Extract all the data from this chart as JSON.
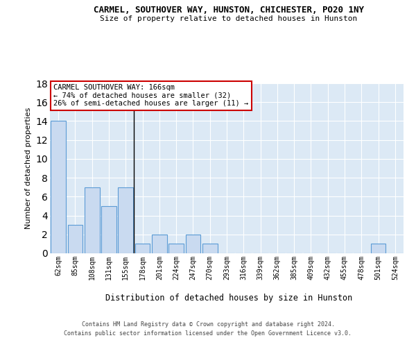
{
  "title": "CARMEL, SOUTHOVER WAY, HUNSTON, CHICHESTER, PO20 1NY",
  "subtitle": "Size of property relative to detached houses in Hunston",
  "xlabel": "Distribution of detached houses by size in Hunston",
  "ylabel": "Number of detached properties",
  "bar_color": "#c9daf0",
  "bar_edge_color": "#5b9bd5",
  "background_color": "#dce9f5",
  "grid_color": "#ffffff",
  "categories": [
    "62sqm",
    "85sqm",
    "108sqm",
    "131sqm",
    "155sqm",
    "178sqm",
    "201sqm",
    "224sqm",
    "247sqm",
    "270sqm",
    "293sqm",
    "316sqm",
    "339sqm",
    "362sqm",
    "385sqm",
    "409sqm",
    "432sqm",
    "455sqm",
    "478sqm",
    "501sqm",
    "524sqm"
  ],
  "values": [
    14,
    3,
    7,
    5,
    7,
    1,
    2,
    1,
    2,
    1,
    0,
    0,
    0,
    0,
    0,
    0,
    0,
    0,
    0,
    1,
    0
  ],
  "ylim": [
    0,
    18
  ],
  "yticks": [
    0,
    2,
    4,
    6,
    8,
    10,
    12,
    14,
    16,
    18
  ],
  "property_line_index": 4,
  "annotation_text": "CARMEL SOUTHOVER WAY: 166sqm\n← 74% of detached houses are smaller (32)\n26% of semi-detached houses are larger (11) →",
  "annotation_box_color": "#ffffff",
  "annotation_box_edge_color": "#cc0000",
  "footer_line1": "Contains HM Land Registry data © Crown copyright and database right 2024.",
  "footer_line2": "Contains public sector information licensed under the Open Government Licence v3.0.",
  "property_line_color": "#000000"
}
